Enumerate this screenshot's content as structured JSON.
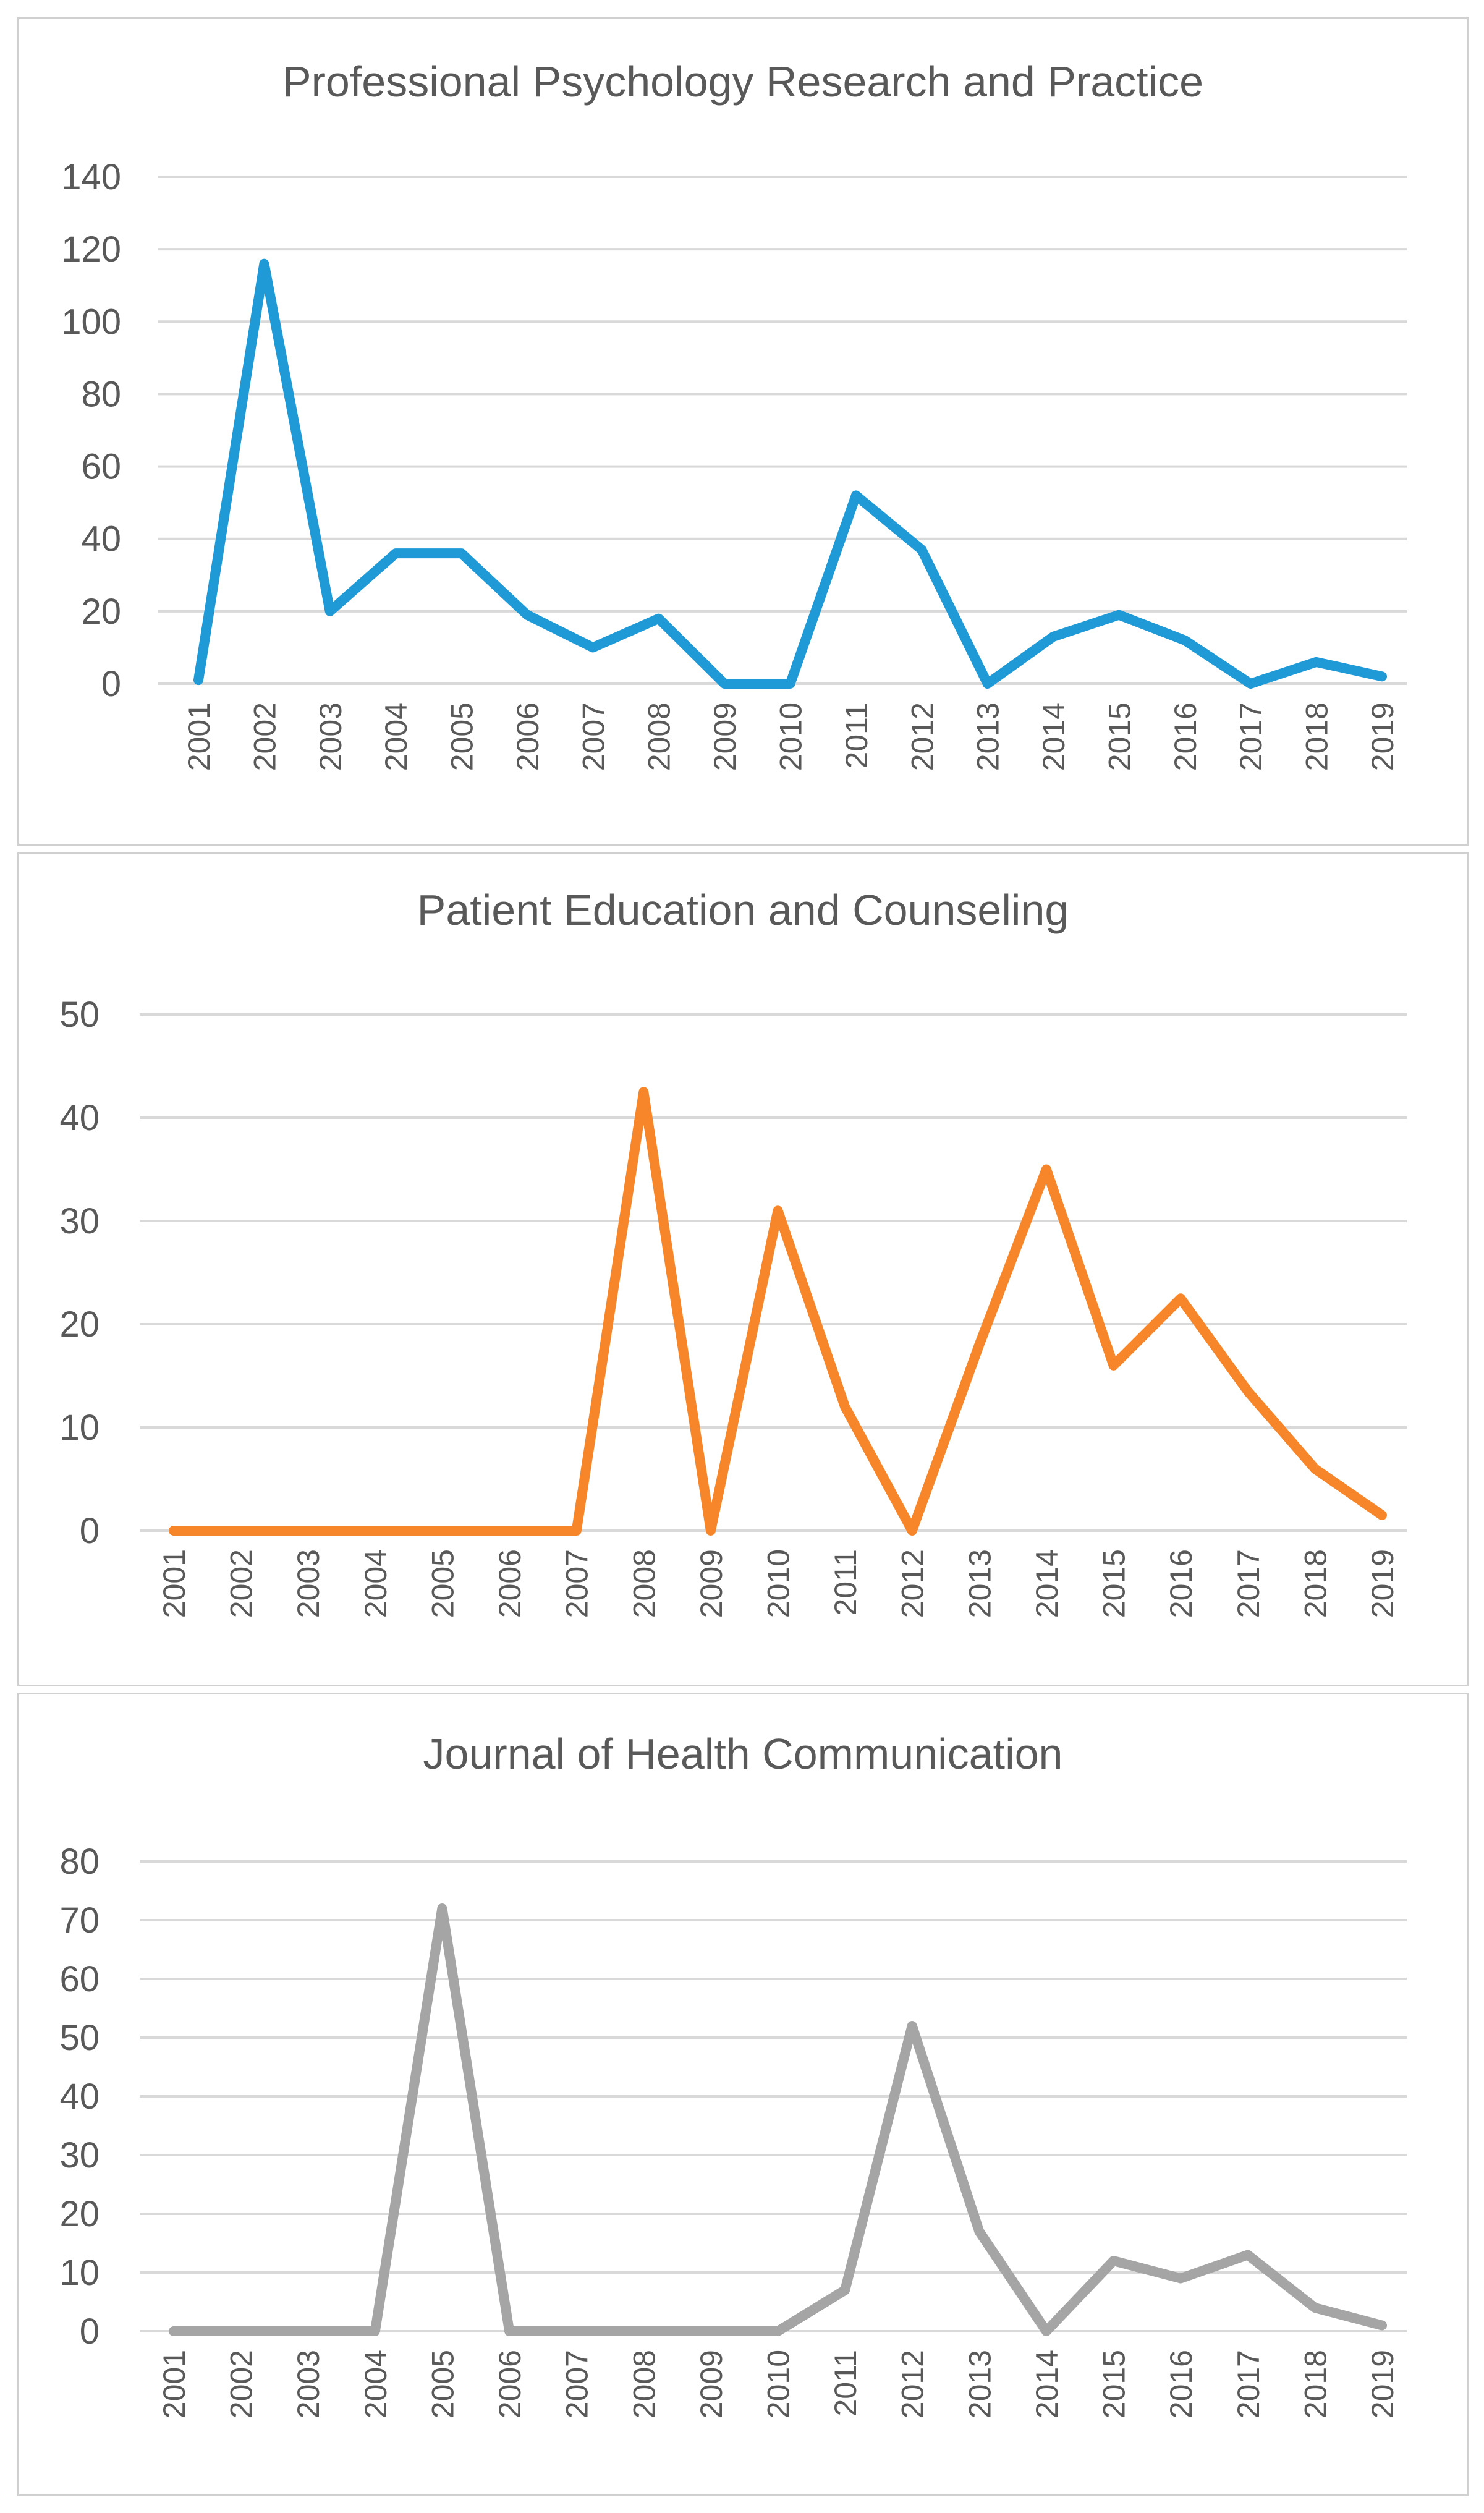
{
  "chart_data": [
    {
      "type": "line",
      "title": "Professional Psychology Research and Practice",
      "color": "#1f9ad6",
      "categories": [
        "2001",
        "2002",
        "2003",
        "2004",
        "2005",
        "2006",
        "2007",
        "2008",
        "2009",
        "2010",
        "2011",
        "2012",
        "2013",
        "2014",
        "2015",
        "2016",
        "2017",
        "2018",
        "2019"
      ],
      "series": [
        {
          "name": "Professional Psychology Research and Practice",
          "values": [
            1,
            116,
            20,
            36,
            36,
            19,
            10,
            18,
            0,
            0,
            52,
            37,
            0,
            13,
            19,
            12,
            0,
            6,
            2
          ]
        }
      ],
      "yticks": [
        0,
        20,
        40,
        60,
        80,
        100,
        120,
        140
      ],
      "ylim": [
        0,
        140
      ],
      "grid": true,
      "xlabel": "",
      "ylabel": ""
    },
    {
      "type": "line",
      "title": "Patient Education and Counseling",
      "color": "#f7862a",
      "categories": [
        "2001",
        "2002",
        "2003",
        "2004",
        "2005",
        "2006",
        "2007",
        "2008",
        "2009",
        "2010",
        "2011",
        "2012",
        "2013",
        "2014",
        "2015",
        "2016",
        "2017",
        "2018",
        "2019"
      ],
      "series": [
        {
          "name": "Patient Education and Counseling",
          "values": [
            0,
            0,
            0,
            0,
            0,
            0,
            0,
            42.5,
            0,
            31,
            12,
            0,
            18,
            35,
            16,
            22.5,
            13.5,
            6,
            1.5
          ]
        }
      ],
      "yticks": [
        0,
        10,
        20,
        30,
        40,
        50
      ],
      "ylim": [
        0,
        50
      ],
      "grid": true,
      "xlabel": "",
      "ylabel": ""
    },
    {
      "type": "line",
      "title": "Journal of Health Communication",
      "color": "#a5a5a5",
      "categories": [
        "2001",
        "2002",
        "2003",
        "2004",
        "2005",
        "2006",
        "2007",
        "2008",
        "2009",
        "2010",
        "2011",
        "2012",
        "2013",
        "2014",
        "2015",
        "2016",
        "2017",
        "2018",
        "2019"
      ],
      "series": [
        {
          "name": "Journal of Health Communication",
          "values": [
            0,
            0,
            0,
            0,
            72,
            0,
            0,
            0,
            0,
            0,
            7,
            52,
            17,
            0,
            12,
            9,
            13,
            4,
            1
          ]
        }
      ],
      "yticks": [
        0,
        10,
        20,
        30,
        40,
        50,
        60,
        70,
        80
      ],
      "ylim": [
        0,
        80
      ],
      "grid": true,
      "xlabel": "",
      "ylabel": ""
    }
  ]
}
